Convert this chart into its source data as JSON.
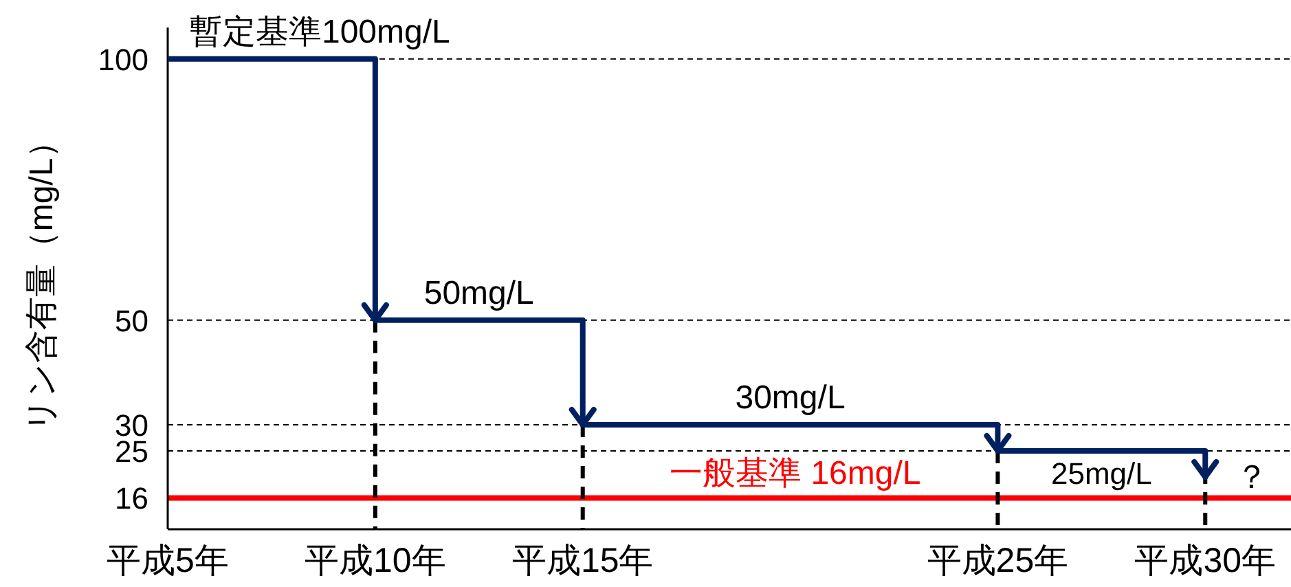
{
  "chart_data": {
    "type": "step",
    "ylabel": "リン含有量（mg/L）",
    "categories": [
      "平成5年",
      "平成10年",
      "平成15年",
      null,
      "平成25年",
      "平成30年"
    ],
    "series": [
      {
        "color": "#002060",
        "values": [
          100,
          50,
          30,
          30,
          25,
          25
        ],
        "value_labels": [
          "暫定基準100mg/L",
          "50mg/L",
          null,
          "30mg/L",
          "25mg/L",
          null
        ]
      }
    ],
    "ylim": [
      10,
      106
    ],
    "yticks": [
      16,
      25,
      30,
      50,
      100
    ],
    "grid": "y",
    "ref_lines": [
      {
        "axis": "y",
        "value": 16,
        "label": "一般基準 16mg/L",
        "color": "#ff0000"
      },
      {
        "axis": "x",
        "value": "平成10年",
        "color": "#000000",
        "line_style": "dashed"
      },
      {
        "axis": "x",
        "value": "平成15年",
        "color": "#000000",
        "line_style": "dashed"
      },
      {
        "axis": "x",
        "value": "平成25年",
        "color": "#000000",
        "line_style": "dashed"
      },
      {
        "axis": "x",
        "value": "平成30年",
        "color": "#000000",
        "line_style": "dashed"
      }
    ],
    "annotations": [
      {
        "text": "？",
        "x": "平成30年",
        "y": 20
      }
    ]
  }
}
